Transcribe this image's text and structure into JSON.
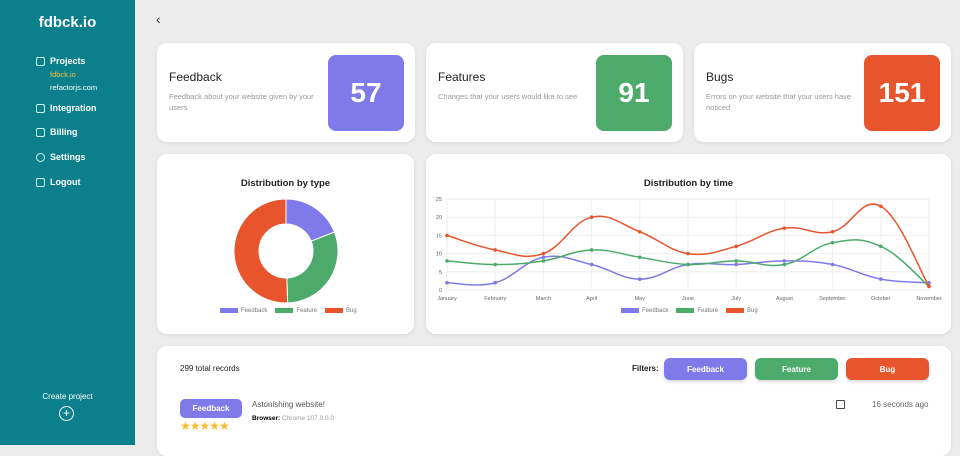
{
  "app": {
    "logo": "fdbck.io"
  },
  "sidebar": {
    "projects": "Projects",
    "project_items": [
      "fdbck.io",
      "refactorjs.com"
    ],
    "integration": "Integration",
    "billing": "Billing",
    "settings": "Settings",
    "logout": "Logout",
    "create_project": "Create project",
    "plus": "+"
  },
  "nav": {
    "back": "‹"
  },
  "stats": [
    {
      "title": "Feedback",
      "desc": "Feedback about your website given by your users",
      "value": "57",
      "color": "#7f7aea"
    },
    {
      "title": "Features",
      "desc": "Changes that your users would like to see",
      "value": "91",
      "color": "#4caa6a"
    },
    {
      "title": "Bugs",
      "desc": "Errors on your website that your users have noticed",
      "value": "151",
      "color": "#e8552c"
    }
  ],
  "chart_data": [
    {
      "type": "pie",
      "title": "Distribution by type",
      "categories": [
        "Feedback",
        "Feature",
        "Bug"
      ],
      "values": [
        57,
        91,
        151
      ],
      "colors": [
        "#7f7aea",
        "#4caa6a",
        "#e8552c"
      ],
      "legend": "bottom"
    },
    {
      "type": "line",
      "title": "Distribution by time",
      "x": [
        "January",
        "February",
        "March",
        "April",
        "May",
        "June",
        "July",
        "August",
        "September",
        "October",
        "November"
      ],
      "ylim": [
        0,
        25
      ],
      "yticks": [
        0,
        5,
        10,
        15,
        20,
        25
      ],
      "legend": "bottom",
      "series": [
        {
          "name": "Feedback",
          "color": "#7f7aea",
          "values": [
            2,
            2,
            9,
            7,
            3,
            7,
            7,
            8,
            7,
            3,
            2
          ]
        },
        {
          "name": "Feature",
          "color": "#4caa6a",
          "values": [
            8,
            7,
            8,
            11,
            9,
            7,
            8,
            7,
            13,
            12,
            1
          ]
        },
        {
          "name": "Bug",
          "color": "#e8552c",
          "values": [
            15,
            11,
            10,
            20,
            16,
            10,
            12,
            17,
            16,
            23,
            1
          ]
        }
      ]
    }
  ],
  "records": {
    "total": "299 total records",
    "filters_label": "Filters:",
    "filters": [
      "Feedback",
      "Feature",
      "Bug"
    ],
    "items": [
      {
        "type": "Feedback",
        "title": "Astonishing website!",
        "browser_label": "Browser:",
        "browser": "Chrome 107.0.0.0",
        "time": "16 seconds ago",
        "stars": "★★★★★",
        "rating": 5
      }
    ]
  }
}
